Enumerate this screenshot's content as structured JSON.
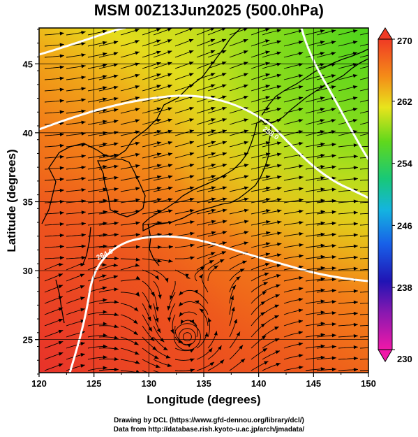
{
  "title": "MSM 00Z13Jun2025 (500.0hPa)",
  "xlabel": "Longitude (degrees)",
  "ylabel": "Latitude  (degrees)",
  "x_ticks": [
    "120",
    "125",
    "130",
    "135",
    "140",
    "145",
    "150"
  ],
  "y_ticks": [
    "25",
    "30",
    "35",
    "40",
    "45"
  ],
  "colorbar": {
    "labels": [
      "270",
      "262",
      "254",
      "246",
      "238",
      "230"
    ],
    "min": 230,
    "max": 270
  },
  "contour_labels": [
    "258.0",
    "264.0"
  ],
  "footer": {
    "line1": "Drawing by DCL (https://www.gfd-dennou.org/library/dcl/)",
    "line2": "Data from http://database.rish.kyoto-u.ac.jp/arch/jmadata/"
  },
  "map": {
    "lon_range": [
      120,
      150
    ],
    "lat_range": [
      22.6,
      47.6
    ],
    "gridlines": true,
    "colors": {
      "warm": "#e8401e",
      "mid": "#f07818",
      "yellow": "#e4e018",
      "green": "#5cd41c",
      "contour": "#ffffff",
      "coast": "#000000"
    }
  }
}
